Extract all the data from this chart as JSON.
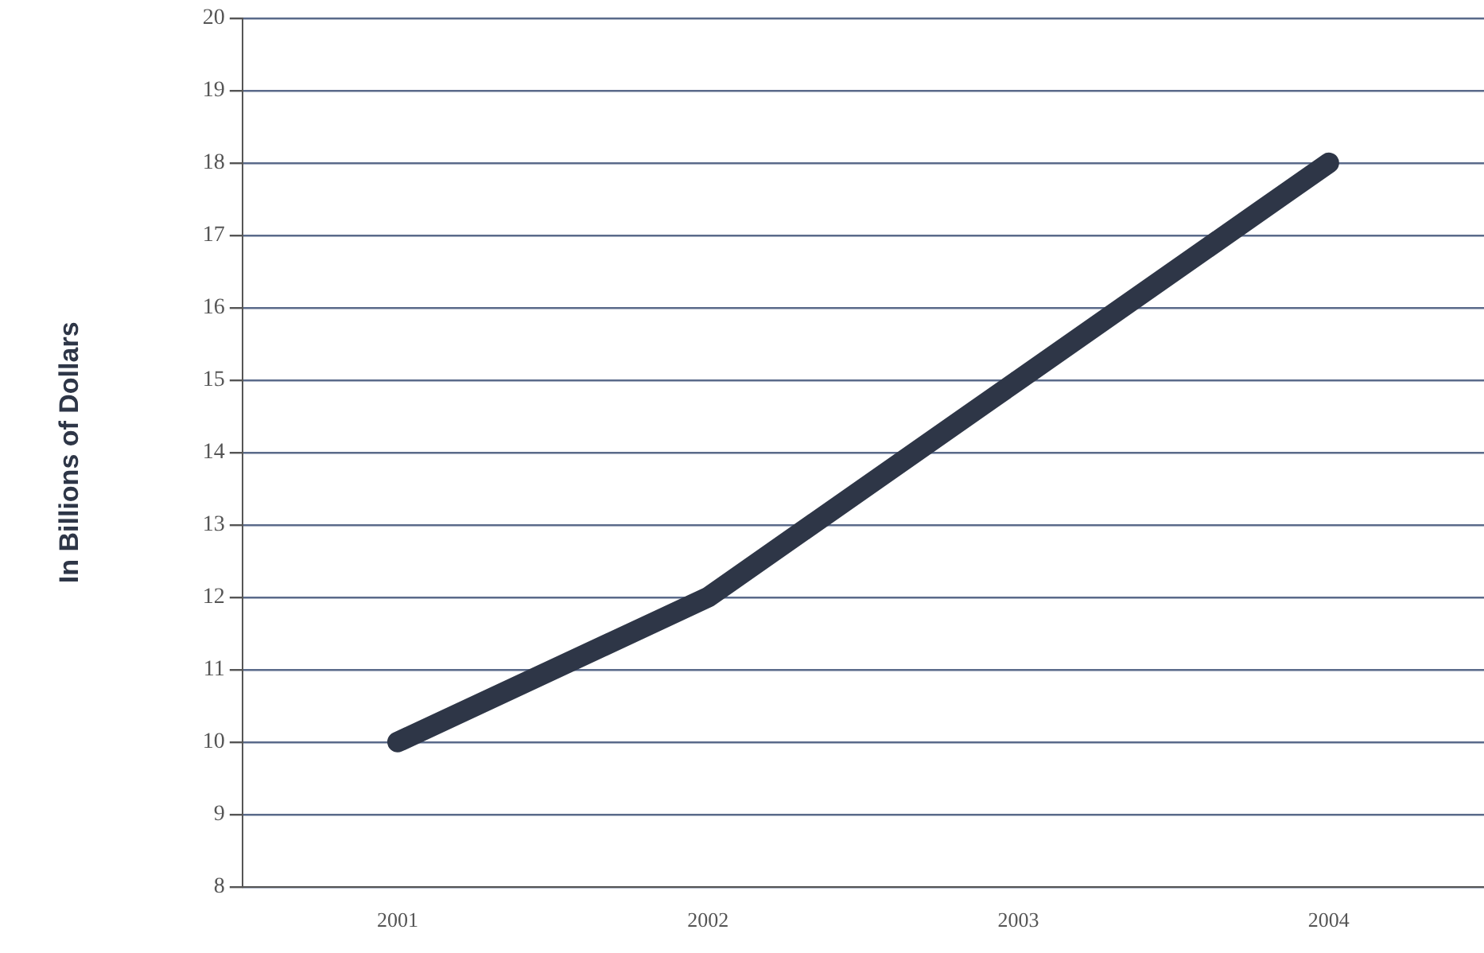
{
  "chart_data": {
    "type": "line",
    "ylabel": "In Billions of Dollars",
    "categories": [
      "2001",
      "2002",
      "2003",
      "2004"
    ],
    "series": [
      {
        "color": "#2e3647",
        "values": [
          10,
          12,
          15,
          18
        ]
      }
    ],
    "ylim": [
      8,
      20
    ],
    "yticks": [
      8,
      9,
      10,
      11,
      12,
      13,
      14,
      15,
      16,
      17,
      18,
      19,
      20
    ],
    "grid": "y",
    "legend": false,
    "marker": "none",
    "line_style": "solid"
  }
}
